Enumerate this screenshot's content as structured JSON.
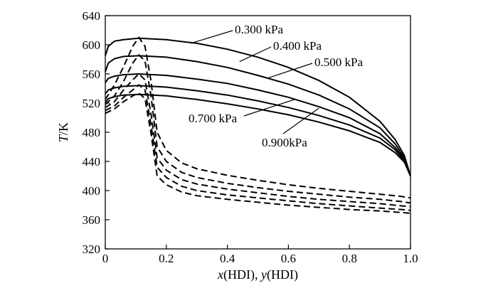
{
  "chart_data": {
    "type": "line",
    "title": "",
    "xlabel": {
      "pre": "x",
      "mid": "(HDI), ",
      "var2": "y",
      "post": "(HDI)"
    },
    "ylabel": {
      "italic": "T",
      "rest": "/K"
    },
    "xlim": [
      0,
      1.0
    ],
    "ylim": [
      320,
      640
    ],
    "xticks": [
      0,
      0.2,
      0.4,
      0.6,
      0.8,
      1.0
    ],
    "xtick_labels": [
      "0",
      "0.2",
      "0.4",
      "0.6",
      "0.8",
      "1.0"
    ],
    "yticks": [
      320,
      360,
      400,
      440,
      480,
      520,
      560,
      600,
      640
    ],
    "ytick_labels": [
      "320",
      "360",
      "400",
      "440",
      "480",
      "520",
      "560",
      "600",
      "640"
    ],
    "annotations": [
      {
        "text": "0.300 kPa",
        "target": [
          0.28,
          602
        ]
      },
      {
        "text": "0.400 kPa",
        "target": [
          0.44,
          577
        ]
      },
      {
        "text": "0.500 kPa",
        "target": [
          0.53,
          554
        ]
      },
      {
        "text": "0.700 kPa",
        "target": [
          0.62,
          525
        ]
      },
      {
        "text": "0.900kPa",
        "target": [
          0.7,
          513
        ]
      }
    ],
    "series": [
      {
        "name": "0.300 kPa (liquid, solid)",
        "style": "solid",
        "x": [
          0,
          0.01,
          0.03,
          0.06,
          0.11,
          0.2,
          0.3,
          0.4,
          0.5,
          0.6,
          0.7,
          0.8,
          0.9,
          0.95,
          0.98,
          1.0
        ],
        "y": [
          585,
          598,
          605,
          607,
          609,
          607,
          602,
          594,
          583,
          569,
          551,
          528,
          495,
          470,
          448,
          420
        ]
      },
      {
        "name": "0.400 kPa (liquid, solid)",
        "style": "solid",
        "x": [
          0,
          0.01,
          0.03,
          0.06,
          0.11,
          0.2,
          0.3,
          0.4,
          0.5,
          0.6,
          0.7,
          0.8,
          0.9,
          0.95,
          0.98,
          1.0
        ],
        "y": [
          563,
          575,
          581,
          584,
          585,
          583,
          577,
          569,
          558,
          546,
          531,
          512,
          486,
          464,
          445,
          420
        ]
      },
      {
        "name": "0.500 kPa (liquid, solid)",
        "style": "solid",
        "x": [
          0,
          0.01,
          0.03,
          0.06,
          0.11,
          0.2,
          0.3,
          0.4,
          0.5,
          0.6,
          0.7,
          0.8,
          0.9,
          0.95,
          0.98,
          1.0
        ],
        "y": [
          548,
          554,
          557,
          559,
          560,
          558,
          553,
          547,
          538,
          528,
          515,
          500,
          478,
          459,
          443,
          420
        ]
      },
      {
        "name": "0.700 kPa (liquid, solid)",
        "style": "solid",
        "x": [
          0,
          0.01,
          0.03,
          0.06,
          0.11,
          0.2,
          0.3,
          0.4,
          0.5,
          0.6,
          0.7,
          0.8,
          0.9,
          0.95,
          0.98,
          1.0
        ],
        "y": [
          533,
          538,
          541,
          543,
          544,
          542,
          537,
          531,
          523,
          514,
          503,
          490,
          472,
          456,
          441,
          420
        ]
      },
      {
        "name": "0.900 kPa (liquid, solid)",
        "style": "solid",
        "x": [
          0,
          0.01,
          0.03,
          0.06,
          0.11,
          0.2,
          0.3,
          0.4,
          0.5,
          0.6,
          0.7,
          0.8,
          0.9,
          0.95,
          0.98,
          1.0
        ],
        "y": [
          521,
          526,
          529,
          531,
          532,
          530,
          525,
          519,
          512,
          504,
          494,
          482,
          466,
          452,
          439,
          420
        ]
      },
      {
        "name": "0.300 kPa (vapour, dashed)",
        "style": "dashed",
        "x": [
          0,
          0.03,
          0.06,
          0.09,
          0.11,
          0.13,
          0.15,
          0.17,
          0.2,
          0.25,
          0.3,
          0.4,
          0.5,
          0.6,
          0.7,
          0.8,
          0.9,
          0.97,
          1.0
        ],
        "y": [
          525,
          545,
          570,
          598,
          610,
          598,
          550,
          480,
          455,
          438,
          430,
          421,
          414,
          408,
          403,
          399,
          395,
          392,
          390
        ]
      },
      {
        "name": "0.400 kPa (vapour, dashed)",
        "style": "dashed",
        "x": [
          0,
          0.03,
          0.06,
          0.09,
          0.11,
          0.13,
          0.15,
          0.17,
          0.2,
          0.25,
          0.3,
          0.4,
          0.5,
          0.6,
          0.7,
          0.8,
          0.9,
          0.97,
          1.0
        ],
        "y": [
          518,
          530,
          550,
          575,
          586,
          578,
          530,
          460,
          440,
          425,
          418,
          410,
          404,
          399,
          395,
          391,
          388,
          385,
          383
        ]
      },
      {
        "name": "0.500 kPa (vapour, dashed)",
        "style": "dashed",
        "x": [
          0,
          0.03,
          0.06,
          0.09,
          0.11,
          0.13,
          0.15,
          0.17,
          0.2,
          0.25,
          0.3,
          0.4,
          0.5,
          0.6,
          0.7,
          0.8,
          0.9,
          0.97,
          1.0
        ],
        "y": [
          514,
          522,
          538,
          552,
          560,
          552,
          505,
          445,
          428,
          415,
          409,
          402,
          397,
          392,
          388,
          385,
          382,
          379,
          378
        ]
      },
      {
        "name": "0.700 kPa (vapour, dashed)",
        "style": "dashed",
        "x": [
          0,
          0.03,
          0.06,
          0.09,
          0.11,
          0.13,
          0.15,
          0.17,
          0.2,
          0.25,
          0.3,
          0.4,
          0.5,
          0.6,
          0.7,
          0.8,
          0.9,
          0.97,
          1.0
        ],
        "y": [
          510,
          516,
          528,
          538,
          545,
          538,
          490,
          432,
          418,
          406,
          400,
          394,
          390,
          386,
          382,
          379,
          376,
          374,
          373
        ]
      },
      {
        "name": "0.900 kPa (vapour, dashed)",
        "style": "dashed",
        "x": [
          0,
          0.03,
          0.06,
          0.09,
          0.11,
          0.13,
          0.15,
          0.17,
          0.2,
          0.25,
          0.3,
          0.4,
          0.5,
          0.6,
          0.7,
          0.8,
          0.9,
          0.97,
          1.0
        ],
        "y": [
          506,
          512,
          522,
          530,
          534,
          526,
          478,
          420,
          408,
          398,
          393,
          388,
          384,
          380,
          377,
          374,
          372,
          370,
          369
        ]
      }
    ]
  }
}
